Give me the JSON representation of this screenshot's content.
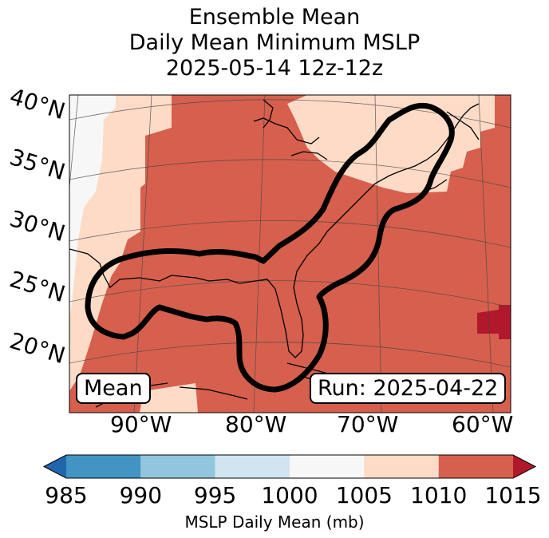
{
  "title_lines": [
    "Ensemble Mean",
    "Daily Mean Minimum MSLP",
    "2025-05-14 12z-12z"
  ],
  "lat_labels": [
    "40°N",
    "35°N",
    "30°N",
    "25°N",
    "20°N"
  ],
  "lon_labels": [
    "90°W",
    "80°W",
    "70°W",
    "60°W"
  ],
  "mean_label": "Mean",
  "run_label": "Run: 2025-04-22",
  "colorbar": {
    "label": "MSLP Daily Mean (mb)",
    "ticks": [
      "985",
      "990",
      "995",
      "1000",
      "1005",
      "1010",
      "1015"
    ],
    "colors": [
      "#4393c3",
      "#92c5de",
      "#d1e5f0",
      "#f7f7f7",
      "#fddbc7",
      "#d6604d",
      "#b2182b"
    ],
    "extend_low_color": "#2166ac",
    "extend_high_color": "#b2182b"
  }
}
